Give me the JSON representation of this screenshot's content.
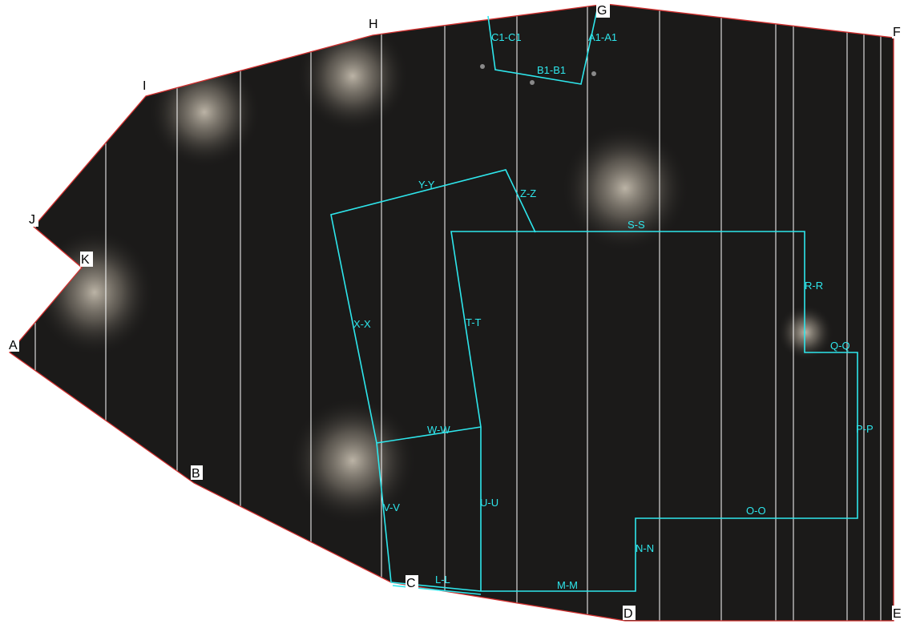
{
  "colors": {
    "background": "#ffffff",
    "floor": "#1b1a19",
    "boundary": "#d0302f",
    "grid_lines": "#ffffff",
    "zone_lines": "#2ee6ec",
    "glow": "#d8cfbf"
  },
  "vertices": [
    "A",
    "B",
    "C",
    "D",
    "E",
    "F",
    "G",
    "H",
    "I",
    "J",
    "K"
  ],
  "segments": [
    "C1-C1",
    "A1-A1",
    "B1-B1",
    "Y-Y",
    "Z-Z",
    "S-S",
    "R-R",
    "Q-Q",
    "P-P",
    "O-O",
    "N-N",
    "M-M",
    "L-L",
    "T-T",
    "U-U",
    "W-W",
    "X-X",
    "V-V"
  ]
}
